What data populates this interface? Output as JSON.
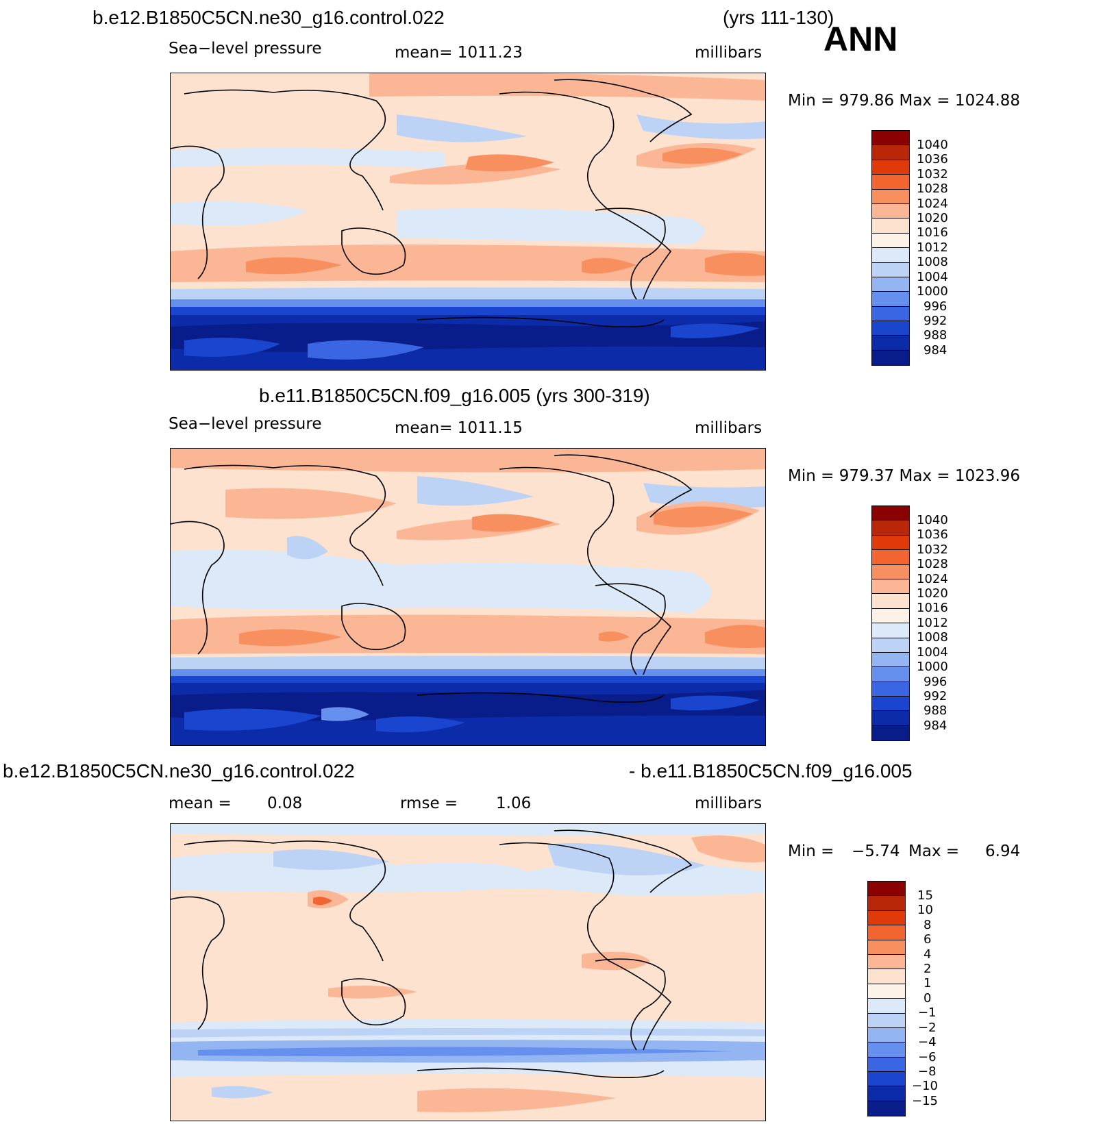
{
  "season": "ANN",
  "panel1": {
    "case": "b.e12.B1850C5CN.ne30_g16.control.022",
    "years": "(yrs 111-130)",
    "variable": "Sea−level pressure",
    "mean": "mean=  1011.23",
    "units": "millibars",
    "minmax": "Min  =  979.86  Max  =  1024.88"
  },
  "panel2": {
    "title": "b.e11.B1850C5CN.f09_g16.005 (yrs 300-319)",
    "variable": "Sea−level pressure",
    "mean": "mean=  1011.15",
    "units": "millibars",
    "minmax": "Min  =  979.37  Max  =  1023.96"
  },
  "panel3": {
    "case_a": "b.e12.B1850C5CN.ne30_g16.control.022",
    "case_b": "- b.e11.B1850C5CN.f09_g16.005",
    "mean_label": "mean  =",
    "mean_value": "0.08",
    "rmse_label": "rmse  =",
    "rmse_value": "1.06",
    "units": "millibars",
    "min_label": "Min  =",
    "min_value": "−5.74",
    "max_label": "Max  =",
    "max_value": "6.94"
  },
  "colorbar_slp": {
    "labels": [
      "1040",
      "1036",
      "1032",
      "1028",
      "1024",
      "1020",
      "1016",
      "1012",
      "1008",
      "1004",
      "1000",
      "996",
      "992",
      "988",
      "984"
    ],
    "colors": [
      "#8b0000",
      "#b82808",
      "#e03a0a",
      "#f26530",
      "#f7905e",
      "#fbb795",
      "#fde2cf",
      "#fdf2e8",
      "#dce9f8",
      "#bcd3f6",
      "#93b5f2",
      "#6690ee",
      "#3a66e4",
      "#1a45cf",
      "#0c2ba8",
      "#081c8a"
    ]
  },
  "colorbar_diff": {
    "labels": [
      "15",
      "10",
      "8",
      "6",
      "4",
      "2",
      "1",
      "0",
      "−1",
      "−2",
      "−4",
      "−6",
      "−8",
      "−10",
      "−15"
    ],
    "colors": [
      "#8b0000",
      "#b82808",
      "#e03a0a",
      "#f26530",
      "#f7905e",
      "#fbb795",
      "#fde2cf",
      "#fdf2e8",
      "#dce9f8",
      "#bcd3f6",
      "#93b5f2",
      "#6690ee",
      "#3a66e4",
      "#1a45cf",
      "#0c2ba8",
      "#081c8a"
    ]
  }
}
